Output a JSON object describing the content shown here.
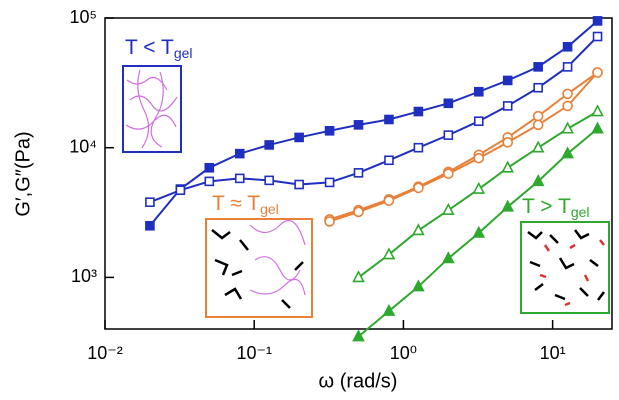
{
  "chart_data": {
    "type": "line",
    "xlabel": "ω (rad/s)",
    "ylabel": "G′,G″(Pa)",
    "log_x": true,
    "log_y": true,
    "xlim": [
      0.01,
      25
    ],
    "ylim": [
      400,
      100000
    ],
    "xticks": [
      {
        "value": 0.01,
        "label": "10⁻²"
      },
      {
        "value": 0.1,
        "label": "10⁻¹"
      },
      {
        "value": 1,
        "label": "10⁰"
      },
      {
        "value": 10,
        "label": "10¹"
      }
    ],
    "yticks": [
      {
        "value": 1000,
        "label": "10³"
      },
      {
        "value": 10000,
        "label": "10⁴"
      },
      {
        "value": 100000,
        "label": "10⁵"
      }
    ],
    "series": [
      {
        "color": "#1f2fc0",
        "marker": "square",
        "filled": true,
        "x": [
          0.02,
          0.032,
          0.05,
          0.08,
          0.126,
          0.2,
          0.32,
          0.5,
          0.8,
          1.26,
          2,
          3.2,
          5,
          8,
          12.6,
          20
        ],
        "values": [
          2500,
          4800,
          7000,
          9000,
          10500,
          12000,
          13500,
          15000,
          16500,
          19000,
          22000,
          27000,
          33000,
          42000,
          60000,
          95000
        ]
      },
      {
        "color": "#1f2fc0",
        "marker": "square",
        "filled": false,
        "x": [
          0.02,
          0.032,
          0.05,
          0.08,
          0.126,
          0.2,
          0.32,
          0.5,
          0.8,
          1.26,
          2,
          3.2,
          5,
          8,
          12.6,
          20
        ],
        "values": [
          3800,
          4700,
          5500,
          5800,
          5600,
          5200,
          5400,
          6400,
          8000,
          10000,
          12500,
          16000,
          21000,
          29000,
          42000,
          72000
        ]
      },
      {
        "color": "#e8803a",
        "marker": "circle",
        "filled": false,
        "x": [
          0.32,
          0.5,
          0.8,
          1.26,
          2,
          3.2,
          5,
          8,
          12.6,
          20
        ],
        "values": [
          2800,
          3300,
          4000,
          5000,
          6500,
          8800,
          12000,
          17500,
          26000,
          38000
        ]
      },
      {
        "color": "#e8803a",
        "marker": "circle",
        "filled": false,
        "x": [
          0.32,
          0.5,
          0.8,
          1.26,
          2,
          3.2,
          5,
          8,
          12.6,
          20
        ],
        "values": [
          2700,
          3200,
          3900,
          4900,
          6300,
          8300,
          11000,
          15000,
          21000,
          38000
        ]
      },
      {
        "color": "#2ea82e",
        "marker": "triangle",
        "filled": false,
        "x": [
          0.5,
          0.8,
          1.26,
          2,
          3.2,
          5,
          8,
          12.6,
          20
        ],
        "values": [
          1000,
          1500,
          2300,
          3300,
          4800,
          7000,
          10000,
          14000,
          19000
        ]
      },
      {
        "color": "#2ea82e",
        "marker": "triangle",
        "filled": true,
        "x": [
          0.5,
          0.8,
          1.26,
          2,
          3.2,
          5,
          8,
          12.6,
          20
        ],
        "values": [
          350,
          550,
          850,
          1400,
          2200,
          3500,
          5500,
          9000,
          14000
        ]
      }
    ],
    "annotations": [
      {
        "text": "T < T",
        "sub": "gel",
        "color": "#1f2fc0"
      },
      {
        "text": "T ≈ T",
        "sub": "gel",
        "color": "#e8803a"
      },
      {
        "text": "T > T",
        "sub": "gel",
        "color": "#2ea82e"
      }
    ]
  }
}
